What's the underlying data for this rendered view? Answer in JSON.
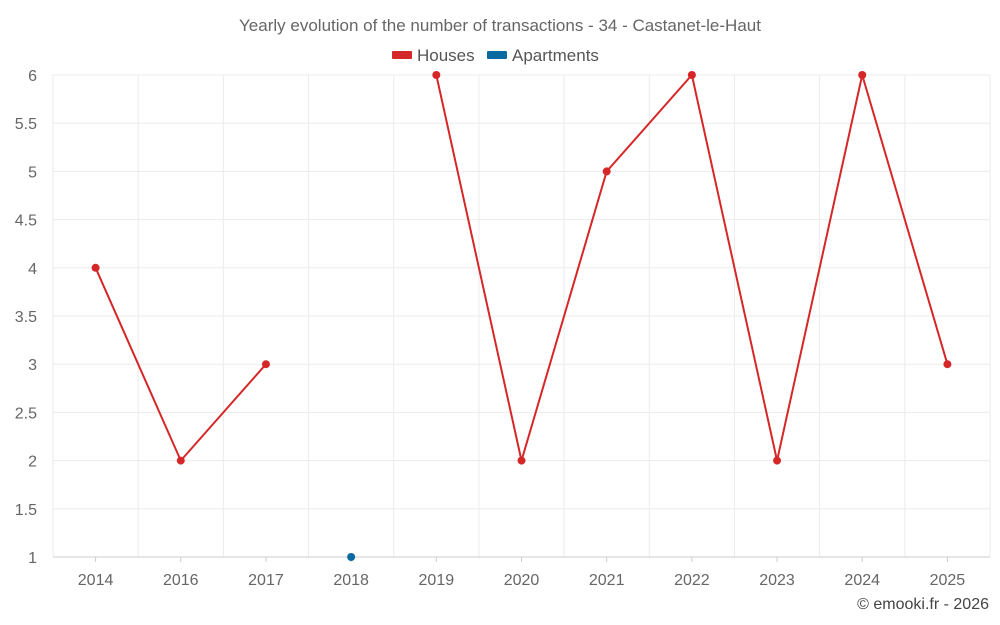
{
  "chart_data": {
    "type": "line",
    "title": "Yearly evolution of the number of transactions - 34 - Castanet-le-Haut",
    "categories": [
      "2014",
      "2016",
      "2017",
      "2018",
      "2019",
      "2020",
      "2021",
      "2022",
      "2023",
      "2024",
      "2025"
    ],
    "series": [
      {
        "name": "Houses",
        "color": "#d62728",
        "values": [
          4,
          2,
          3,
          null,
          6,
          2,
          5,
          6,
          2,
          6,
          3
        ]
      },
      {
        "name": "Apartments",
        "color": "#0b6aa2",
        "values": [
          null,
          null,
          null,
          1,
          null,
          null,
          null,
          null,
          null,
          null,
          null
        ]
      }
    ],
    "ylim": [
      1,
      6
    ],
    "yticks": [
      "1",
      "1.5",
      "2",
      "2.5",
      "3",
      "3.5",
      "4",
      "4.5",
      "5",
      "5.5",
      "6"
    ],
    "grid": true,
    "legend": "top-center",
    "xlabel": "",
    "ylabel": ""
  },
  "credit": "© emooki.fr - 2026"
}
